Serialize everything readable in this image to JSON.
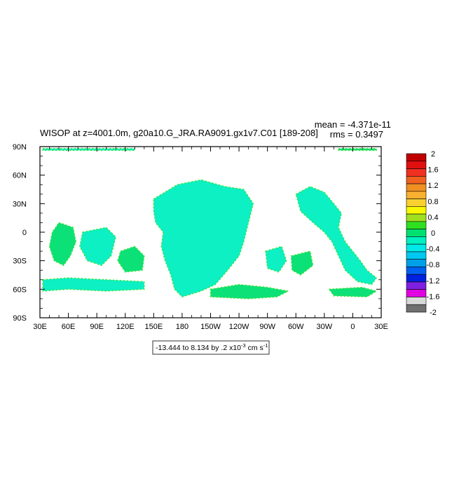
{
  "chart_data": {
    "type": "heatmap",
    "title": "WISOP at z=4001.0m, g20a10.G_JRA.RA9091.gx1v7.C01 [189-208]",
    "stats": {
      "mean": "mean = -4.371e-11",
      "rms": "rms = 0.3497"
    },
    "x_ticks": [
      "30E",
      "60E",
      "90E",
      "120E",
      "150E",
      "180",
      "150W",
      "120W",
      "90W",
      "60W",
      "30W",
      "0",
      "30E"
    ],
    "y_ticks": [
      "90N",
      "60N",
      "30N",
      "0",
      "30S",
      "60S",
      "90S"
    ],
    "xlim": [
      30,
      390
    ],
    "ylim": [
      -90,
      90
    ],
    "contour_info": {
      "min": "-13.444",
      "max": "8.134",
      "step": ".2",
      "text": "-13.444 to 8.134 by .2 x10",
      "exponent": "-3",
      "units": " cm s",
      "units_exponent": "-1"
    },
    "colorbar": {
      "labels": [
        "2",
        "1.6",
        "1.2",
        "0.8",
        "0.4",
        "0",
        "-0.4",
        "-0.8",
        "-1.2",
        "-1.6",
        "-2"
      ],
      "colors": [
        "#c00000",
        "#e01010",
        "#f03020",
        "#f06020",
        "#f09020",
        "#f8b030",
        "#f8d030",
        "#f8f800",
        "#a0e020",
        "#30e020",
        "#00e070",
        "#00f0c0",
        "#00e8e8",
        "#00c8f0",
        "#00a0e8",
        "#0060f0",
        "#0020e0",
        "#8020e0",
        "#e000e0",
        "#d8d8d8",
        "#707070"
      ]
    },
    "legend_placement": "right",
    "grid": false
  }
}
